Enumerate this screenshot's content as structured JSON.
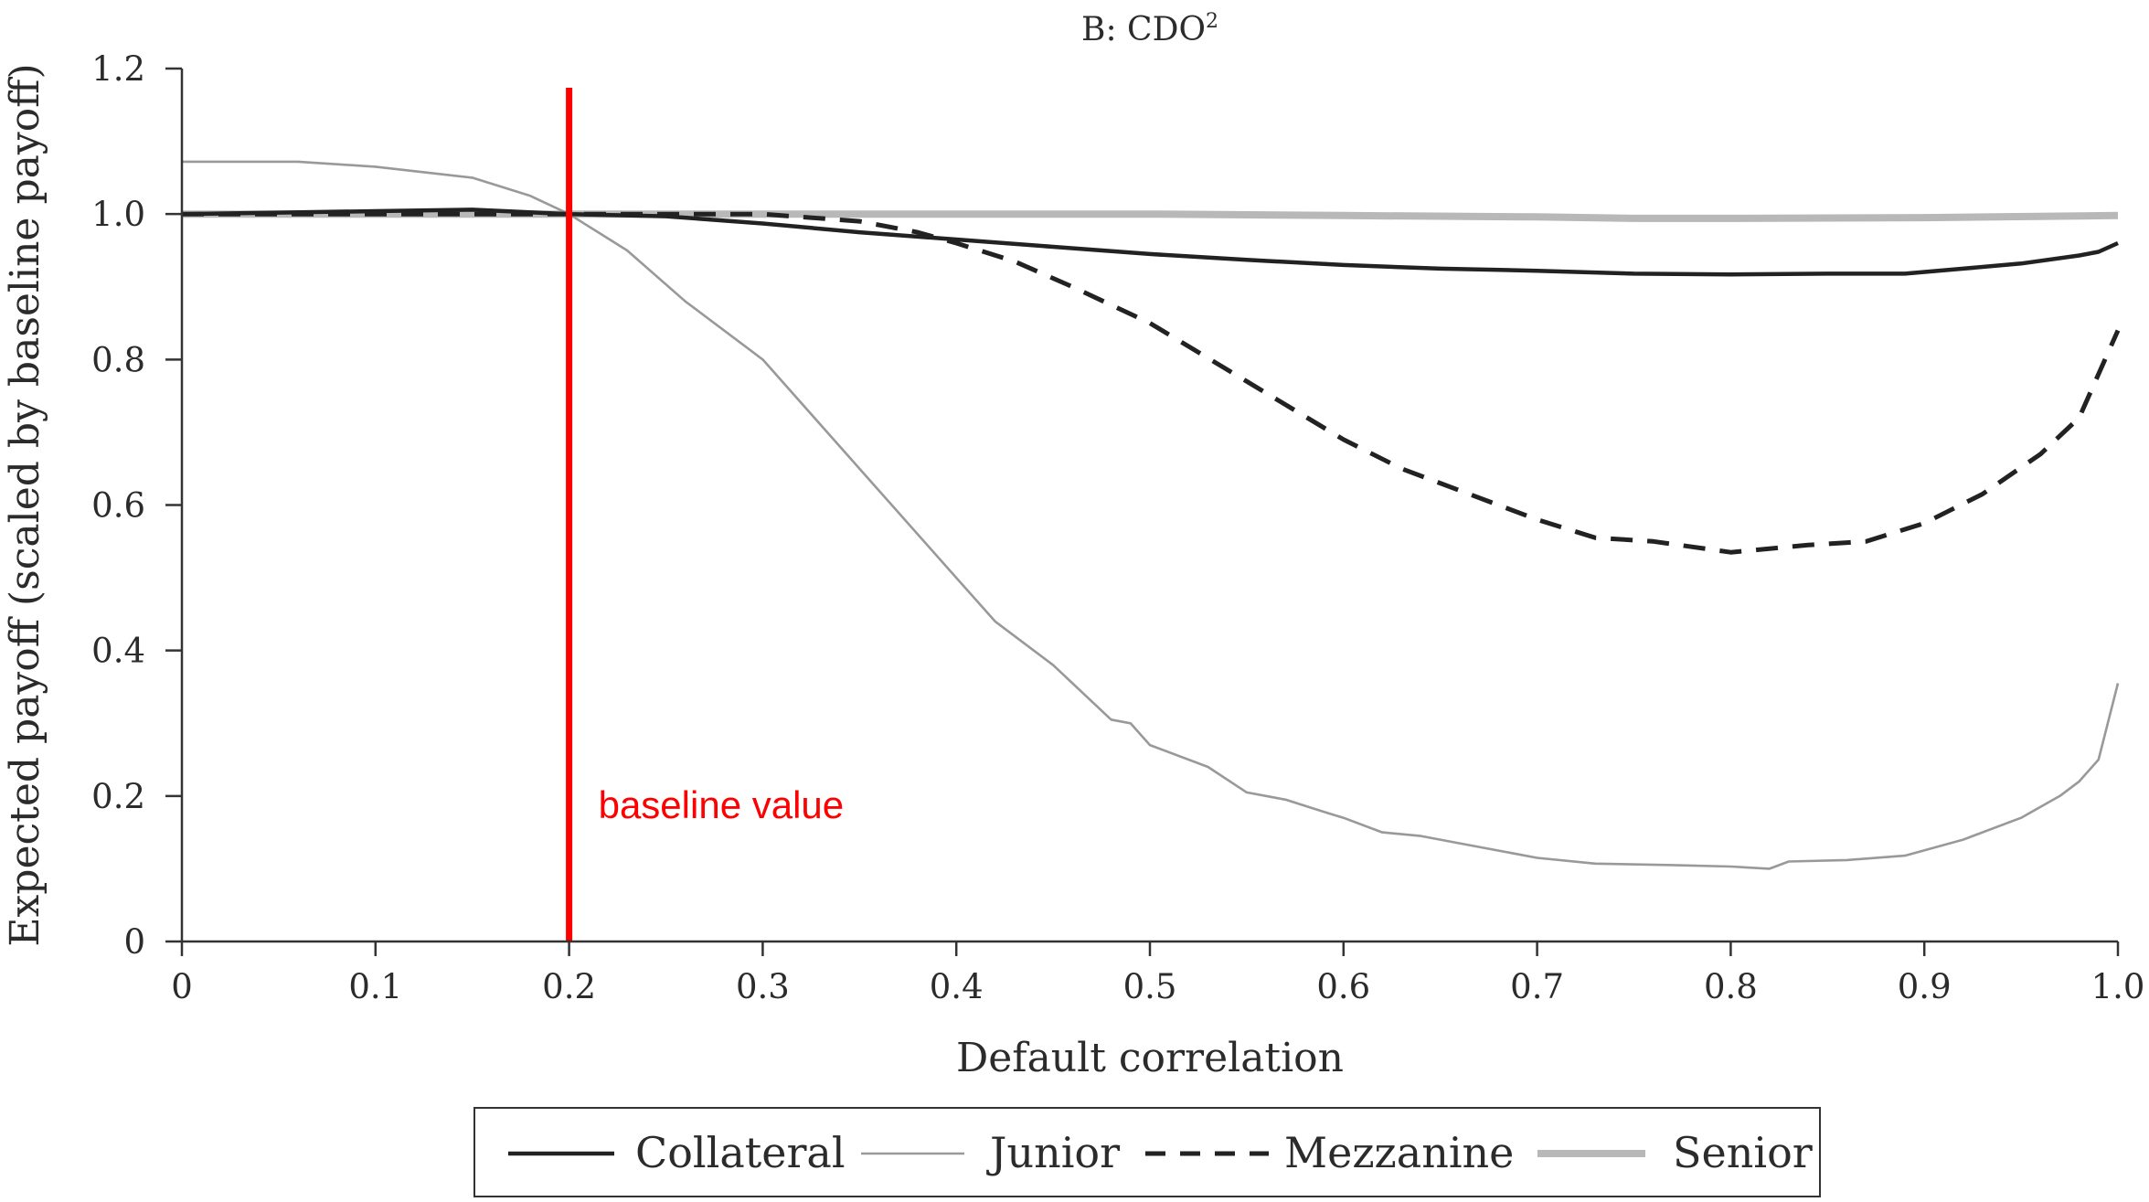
{
  "chart_data": {
    "type": "line",
    "title": "B: CDO",
    "title_superscript": "2",
    "xlabel": "Default correlation",
    "ylabel": "Expected payoff (scaled by baseline payoff)",
    "xlim": [
      0,
      1
    ],
    "ylim": [
      0,
      1.2
    ],
    "x_ticks": [
      0,
      0.1,
      0.2,
      0.3,
      0.4,
      0.5,
      0.6,
      0.7,
      0.8,
      0.9,
      1.0
    ],
    "x_tick_labels": [
      "0",
      "0.1",
      "0.2",
      "0.3",
      "0.4",
      "0.5",
      "0.6",
      "0.7",
      "0.8",
      "0.9",
      "1.0"
    ],
    "y_ticks": [
      0,
      0.2,
      0.4,
      0.6,
      0.8,
      1.0,
      1.2
    ],
    "y_tick_labels": [
      "0",
      "0.2",
      "0.4",
      "0.6",
      "0.8",
      "1.0",
      "1.2"
    ],
    "grid": false,
    "legend_position": "bottom",
    "series": [
      {
        "name": "Collateral",
        "color": "#222222",
        "dash": "solid",
        "points": [
          [
            0,
            1.0
          ],
          [
            0.05,
            1.002
          ],
          [
            0.1,
            1.004
          ],
          [
            0.15,
            1.006
          ],
          [
            0.2,
            1.0
          ],
          [
            0.25,
            0.997
          ],
          [
            0.3,
            0.987
          ],
          [
            0.35,
            0.975
          ],
          [
            0.4,
            0.965
          ],
          [
            0.45,
            0.955
          ],
          [
            0.5,
            0.945
          ],
          [
            0.55,
            0.937
          ],
          [
            0.6,
            0.93
          ],
          [
            0.65,
            0.925
          ],
          [
            0.7,
            0.922
          ],
          [
            0.75,
            0.918
          ],
          [
            0.8,
            0.917
          ],
          [
            0.85,
            0.918
          ],
          [
            0.89,
            0.918
          ],
          [
            0.92,
            0.925
          ],
          [
            0.95,
            0.932
          ],
          [
            0.98,
            0.943
          ],
          [
            0.99,
            0.948
          ],
          [
            1.0,
            0.96
          ]
        ]
      },
      {
        "name": "Junior",
        "color": "#999999",
        "dash": "solid",
        "points": [
          [
            0,
            1.072
          ],
          [
            0.06,
            1.072
          ],
          [
            0.1,
            1.065
          ],
          [
            0.15,
            1.05
          ],
          [
            0.18,
            1.025
          ],
          [
            0.2,
            1.0
          ],
          [
            0.23,
            0.95
          ],
          [
            0.26,
            0.88
          ],
          [
            0.3,
            0.8
          ],
          [
            0.35,
            0.65
          ],
          [
            0.4,
            0.5
          ],
          [
            0.42,
            0.44
          ],
          [
            0.45,
            0.38
          ],
          [
            0.48,
            0.305
          ],
          [
            0.49,
            0.3
          ],
          [
            0.5,
            0.27
          ],
          [
            0.53,
            0.24
          ],
          [
            0.55,
            0.205
          ],
          [
            0.57,
            0.195
          ],
          [
            0.59,
            0.178
          ],
          [
            0.6,
            0.17
          ],
          [
            0.62,
            0.15
          ],
          [
            0.64,
            0.145
          ],
          [
            0.66,
            0.135
          ],
          [
            0.7,
            0.115
          ],
          [
            0.73,
            0.107
          ],
          [
            0.77,
            0.105
          ],
          [
            0.8,
            0.103
          ],
          [
            0.82,
            0.1
          ],
          [
            0.83,
            0.11
          ],
          [
            0.86,
            0.112
          ],
          [
            0.89,
            0.118
          ],
          [
            0.92,
            0.14
          ],
          [
            0.95,
            0.17
          ],
          [
            0.97,
            0.2
          ],
          [
            0.98,
            0.22
          ],
          [
            0.99,
            0.25
          ],
          [
            1.0,
            0.355
          ]
        ]
      },
      {
        "name": "Mezzanine",
        "color": "#222222",
        "dash": "dashed",
        "points": [
          [
            0,
            1.0
          ],
          [
            0.3,
            1.0
          ],
          [
            0.35,
            0.99
          ],
          [
            0.38,
            0.975
          ],
          [
            0.4,
            0.96
          ],
          [
            0.43,
            0.935
          ],
          [
            0.46,
            0.9
          ],
          [
            0.5,
            0.85
          ],
          [
            0.55,
            0.77
          ],
          [
            0.6,
            0.69
          ],
          [
            0.63,
            0.65
          ],
          [
            0.66,
            0.62
          ],
          [
            0.7,
            0.58
          ],
          [
            0.73,
            0.555
          ],
          [
            0.76,
            0.55
          ],
          [
            0.8,
            0.535
          ],
          [
            0.84,
            0.545
          ],
          [
            0.87,
            0.55
          ],
          [
            0.9,
            0.575
          ],
          [
            0.93,
            0.615
          ],
          [
            0.96,
            0.67
          ],
          [
            0.98,
            0.72
          ],
          [
            1.0,
            0.84
          ]
        ]
      },
      {
        "name": "Senior",
        "color": "#b8b8b8",
        "dash": "solid",
        "points": [
          [
            0,
            1.0
          ],
          [
            0.1,
            1.0
          ],
          [
            0.2,
            1.0
          ],
          [
            0.3,
            1.0
          ],
          [
            0.4,
            1.0
          ],
          [
            0.5,
            1.0
          ],
          [
            0.6,
            0.998
          ],
          [
            0.7,
            0.996
          ],
          [
            0.75,
            0.994
          ],
          [
            0.8,
            0.994
          ],
          [
            0.9,
            0.995
          ],
          [
            1.0,
            0.998
          ]
        ]
      }
    ],
    "annotations": [
      {
        "type": "vline",
        "x": 0.2,
        "color": "#ff0000",
        "label": "baseline value"
      }
    ]
  }
}
